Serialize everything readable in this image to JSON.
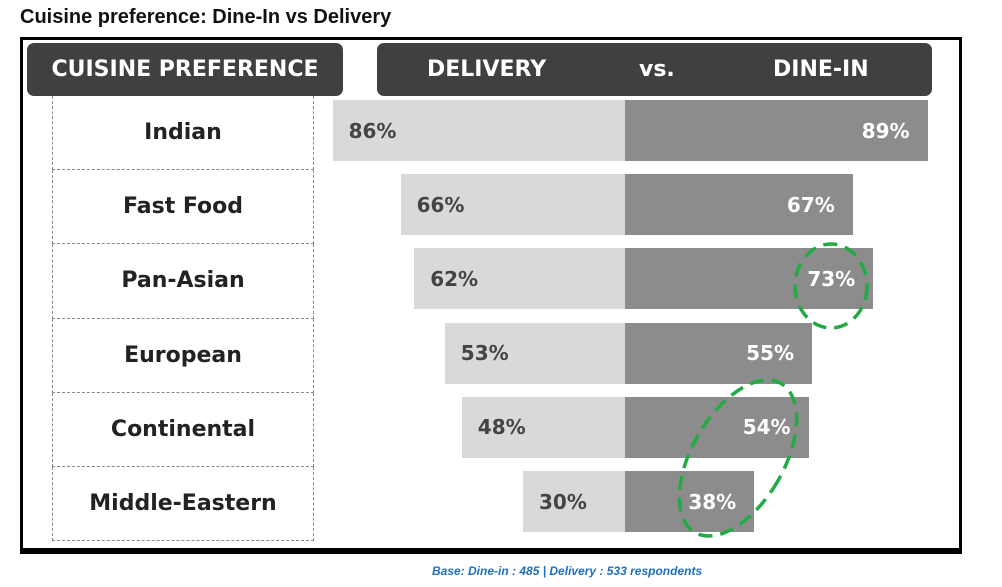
{
  "title": "Cuisine preference: Dine-In vs Delivery",
  "chart_data": {
    "type": "bar",
    "subtype": "diverging",
    "categories": [
      "Indian",
      "Fast Food",
      "Pan-Asian",
      "European",
      "Continental",
      "Middle-Eastern"
    ],
    "series": [
      {
        "name": "DELIVERY",
        "values": [
          86,
          66,
          62,
          53,
          48,
          30
        ],
        "color": "#d9d9d9"
      },
      {
        "name": "DINE-IN",
        "values": [
          89,
          67,
          73,
          55,
          54,
          38
        ],
        "color": "#8c8c8c"
      }
    ],
    "header": {
      "category": "CUISINE PREFERENCE",
      "left": "DELIVERY",
      "vs": "vs.",
      "right": "DINE-IN"
    },
    "annotations": [
      "green dashed circle around Pan-Asian dine-in 73%",
      "green dashed ellipse around Continental 54% and Middle-Eastern 38%"
    ],
    "highlight_color": "#22aa44",
    "footnote": "Base: Dine-in : 485 | Delivery : 533 respondents"
  }
}
